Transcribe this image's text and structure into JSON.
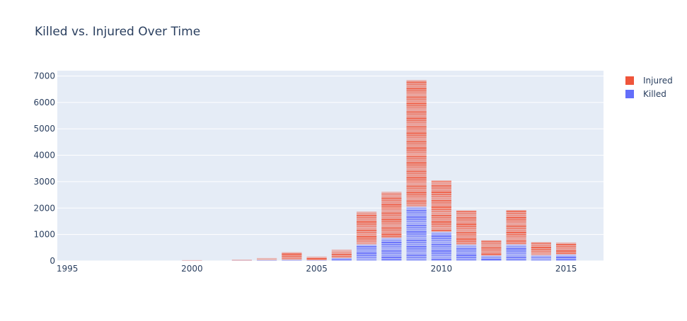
{
  "chart_data": {
    "type": "bar",
    "title": "Killed vs. Injured Over Time",
    "barmode": "stack",
    "x_ticks": [
      1995,
      2000,
      2005,
      2010,
      2015
    ],
    "y_ticks": [
      "0",
      "1000",
      "2000",
      "3000",
      "4000",
      "5000",
      "6000",
      "7000"
    ],
    "xlim": [
      1994.6,
      2016.5
    ],
    "ylim": [
      0,
      7200
    ],
    "grid": true,
    "legend_position": "top-right",
    "x": [
      1995,
      2000,
      2002,
      2003,
      2004,
      2005,
      2006,
      2007,
      2008,
      2009,
      2010,
      2011,
      2012,
      2013,
      2014,
      2015
    ],
    "series": [
      {
        "name": "Killed",
        "color": "#636efa",
        "values": [
          0,
          5,
          10,
          30,
          40,
          25,
          110,
          620,
          870,
          2050,
          1100,
          610,
          200,
          620,
          210,
          240
        ]
      },
      {
        "name": "Injured",
        "color": "#ef553b",
        "values": [
          0,
          25,
          40,
          80,
          290,
          140,
          320,
          1250,
          1750,
          4800,
          1950,
          1300,
          580,
          1300,
          500,
          460
        ]
      }
    ],
    "colors": {
      "plot_bg": "#e5ecf6",
      "grid": "#ffffff",
      "text": "#2a3f5f"
    }
  }
}
